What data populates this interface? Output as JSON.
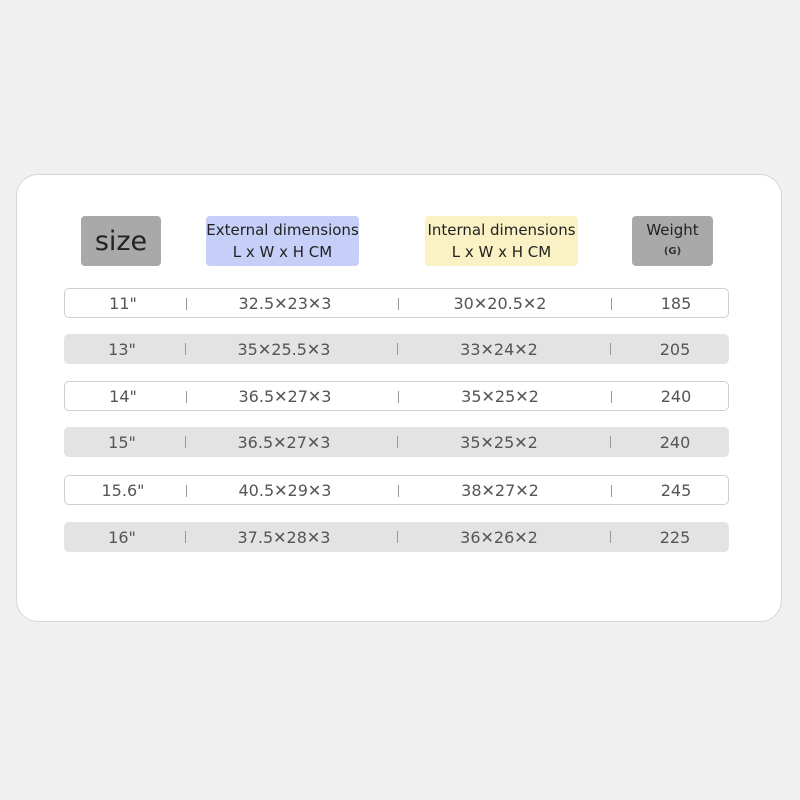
{
  "headers": {
    "size": "size",
    "external_line1": "External dimensions",
    "external_line2": "L x W x H CM",
    "internal_line1": "Internal dimensions",
    "internal_line2": "L x W x H CM",
    "weight": "Weight",
    "weight_unit": "(G)"
  },
  "colors": {
    "size_header": "#a9a9a9",
    "external_header": "#c6cff8",
    "internal_header": "#faf1c4",
    "weight_header": "#a9a9a9"
  },
  "rows": [
    {
      "size": "11\"",
      "external": "32.5✕23✕3",
      "internal": "30✕20.5✕2",
      "weight": "185"
    },
    {
      "size": "13\"",
      "external": "35✕25.5✕3",
      "internal": "33✕24✕2",
      "weight": "205"
    },
    {
      "size": "14\"",
      "external": "36.5✕27✕3",
      "internal": "35✕25✕2",
      "weight": "240"
    },
    {
      "size": "15\"",
      "external": "36.5✕27✕3",
      "internal": "35✕25✕2",
      "weight": "240"
    },
    {
      "size": "15.6\"",
      "external": "40.5✕29✕3",
      "internal": "38✕27✕2",
      "weight": "245"
    },
    {
      "size": "16\"",
      "external": "37.5✕28✕3",
      "internal": "36✕26✕2",
      "weight": "225"
    }
  ]
}
